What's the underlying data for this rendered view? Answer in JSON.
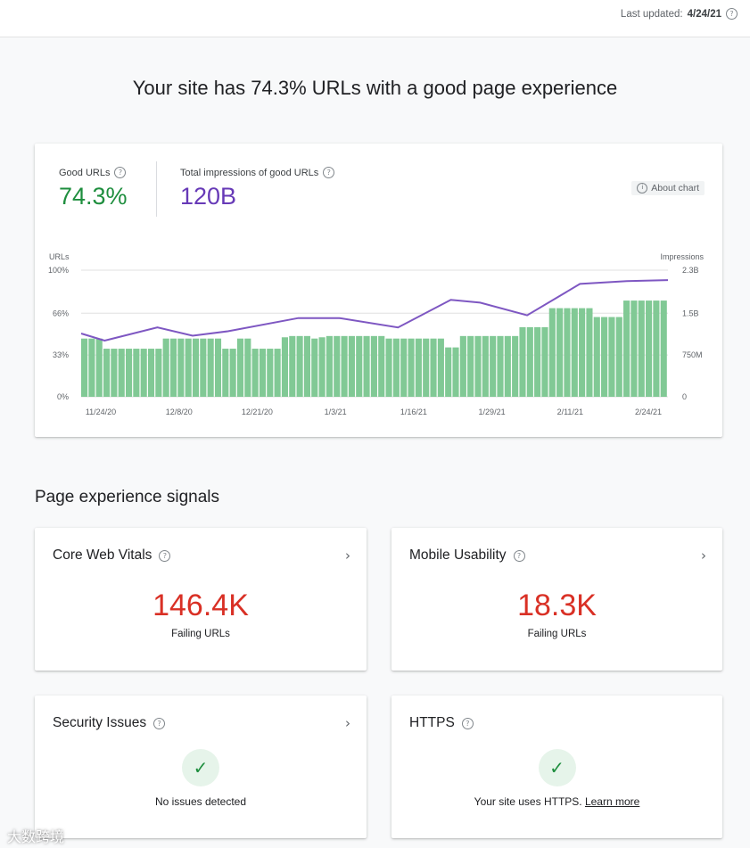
{
  "header": {
    "last_updated_label": "Last updated:",
    "last_updated_date": "4/24/21"
  },
  "headline": "Your site has 74.3% URLs with a good page experience",
  "overview": {
    "good_urls_label": "Good URLs",
    "good_urls_value": "74.3%",
    "impressions_label": "Total impressions of good URLs",
    "impressions_value": "120B",
    "about_chart_label": "About chart"
  },
  "chart_data": {
    "type": "bar",
    "left_axis_title": "URLs",
    "right_axis_title": "Impressions",
    "left_ticks": [
      "100%",
      "66%",
      "33%",
      "0%"
    ],
    "left_tick_values": [
      100,
      66,
      33,
      0
    ],
    "right_ticks": [
      "2.3B",
      "1.5B",
      "750M",
      "0"
    ],
    "x_tick_labels": [
      "11/24/20",
      "12/8/20",
      "12/21/20",
      "1/3/21",
      "1/16/21",
      "1/29/21",
      "2/11/21",
      "2/24/21"
    ],
    "ylim": [
      0,
      100
    ],
    "y2lim": [
      0,
      2.3
    ],
    "colors": {
      "bars": "#81c995",
      "line": "#7e57c2",
      "grid": "#e0e0e0"
    },
    "series": [
      {
        "name": "Good URLs",
        "unit": "%",
        "values": [
          46,
          46,
          46,
          38,
          38,
          38,
          38,
          38,
          38,
          38,
          38,
          46,
          46,
          46,
          46,
          46,
          46,
          46,
          46,
          38,
          38,
          46,
          46,
          38,
          38,
          38,
          38,
          47,
          48,
          48,
          48,
          46,
          47,
          48,
          48,
          48,
          48,
          48,
          48,
          48,
          48,
          46,
          46,
          46,
          46,
          46,
          46,
          46,
          46,
          39,
          39,
          48,
          48,
          48,
          48,
          48,
          48,
          48,
          48,
          55,
          55,
          55,
          55,
          70,
          70,
          70,
          70,
          70,
          70,
          63,
          63,
          63,
          63,
          76,
          76,
          76,
          76,
          76,
          76
        ]
      },
      {
        "name": "Impressions",
        "unit": "B",
        "line_x_fraction": [
          0,
          0.04,
          0.13,
          0.19,
          0.25,
          0.37,
          0.44,
          0.54,
          0.63,
          0.68,
          0.76,
          0.85,
          0.93,
          1.0
        ],
        "values": [
          1.15,
          1.02,
          1.26,
          1.11,
          1.19,
          1.43,
          1.43,
          1.26,
          1.76,
          1.71,
          1.48,
          2.05,
          2.1,
          2.12
        ]
      }
    ]
  },
  "signals": {
    "section_title": "Page experience signals",
    "core_web_vitals": {
      "title": "Core Web Vitals",
      "value": "146.4K",
      "caption": "Failing URLs"
    },
    "mobile_usability": {
      "title": "Mobile Usability",
      "value": "18.3K",
      "caption": "Failing URLs"
    },
    "security_issues": {
      "title": "Security Issues",
      "caption": "No issues detected"
    },
    "https": {
      "title": "HTTPS",
      "caption": "Your site uses HTTPS.",
      "link": "Learn more"
    }
  },
  "watermark": "大数跨境",
  "icons": {
    "help": "help-circle-icon",
    "info": "info-icon",
    "chevron": "chevron-right-icon",
    "check": "check-icon"
  },
  "colors": {
    "good": "#1e8e3e",
    "impressions": "#673ab7",
    "failing": "#d93025"
  }
}
